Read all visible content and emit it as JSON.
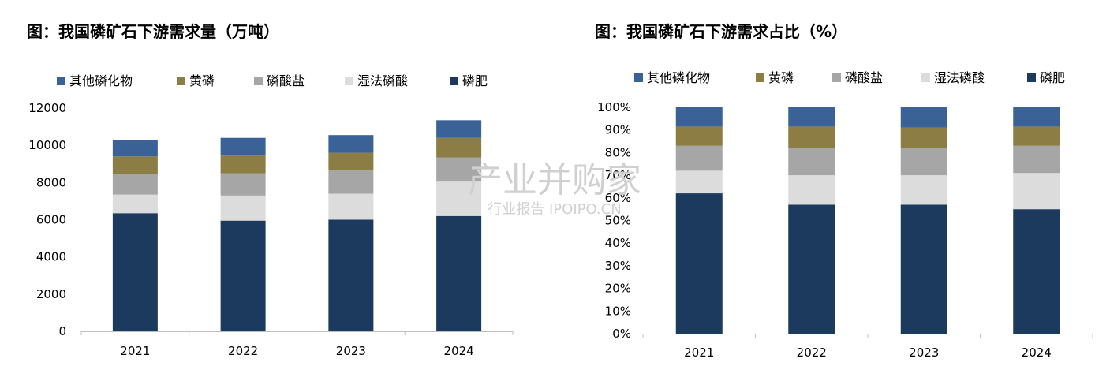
{
  "watermark": {
    "main": "产业并购家",
    "sub": "行业报告 IPOIPO.CN"
  },
  "chart_data": [
    {
      "type": "bar",
      "stacked": true,
      "title": "图：我国磷矿石下游需求量（万吨）",
      "categories": [
        "2021",
        "2022",
        "2023",
        "2024"
      ],
      "ylim": [
        0,
        12000
      ],
      "yticks": [
        0,
        2000,
        4000,
        6000,
        8000,
        10000,
        12000
      ],
      "legend_position": "top",
      "legend_order": [
        "其他磷化物",
        "黄磷",
        "磷酸盐",
        "湿法磷酸",
        "磷肥"
      ],
      "series": [
        {
          "name": "磷肥",
          "color": "#1b3a5e",
          "values": [
            6350,
            5950,
            6000,
            6200
          ]
        },
        {
          "name": "湿法磷酸",
          "color": "#dcdcdc",
          "values": [
            1000,
            1350,
            1400,
            1850
          ]
        },
        {
          "name": "磷酸盐",
          "color": "#a6a6a6",
          "values": [
            1100,
            1200,
            1250,
            1300
          ]
        },
        {
          "name": "黄磷",
          "color": "#8c7d44",
          "values": [
            950,
            950,
            950,
            1050
          ]
        },
        {
          "name": "其他磷化物",
          "color": "#3a6296",
          "values": [
            900,
            950,
            950,
            950
          ]
        }
      ]
    },
    {
      "type": "bar",
      "stacked": true,
      "title": "图：我国磷矿石下游需求占比（%）",
      "categories": [
        "2021",
        "2022",
        "2023",
        "2024"
      ],
      "ylim": [
        0,
        100
      ],
      "yticks": [
        "0%",
        "10%",
        "20%",
        "30%",
        "40%",
        "50%",
        "60%",
        "70%",
        "80%",
        "90%",
        "100%"
      ],
      "legend_position": "top",
      "legend_order": [
        "其他磷化物",
        "黄磷",
        "磷酸盐",
        "湿法磷酸",
        "磷肥"
      ],
      "series": [
        {
          "name": "磷肥",
          "color": "#1b3a5e",
          "values": [
            62,
            57,
            57,
            55
          ]
        },
        {
          "name": "湿法磷酸",
          "color": "#dcdcdc",
          "values": [
            10,
            13,
            13,
            16
          ]
        },
        {
          "name": "磷酸盐",
          "color": "#a6a6a6",
          "values": [
            11,
            12,
            12,
            12
          ]
        },
        {
          "name": "黄磷",
          "color": "#8c7d44",
          "values": [
            8.5,
            9.5,
            9,
            8.5
          ]
        },
        {
          "name": "其他磷化物",
          "color": "#3a6296",
          "values": [
            8.5,
            8.5,
            9,
            8.5
          ]
        }
      ]
    }
  ]
}
